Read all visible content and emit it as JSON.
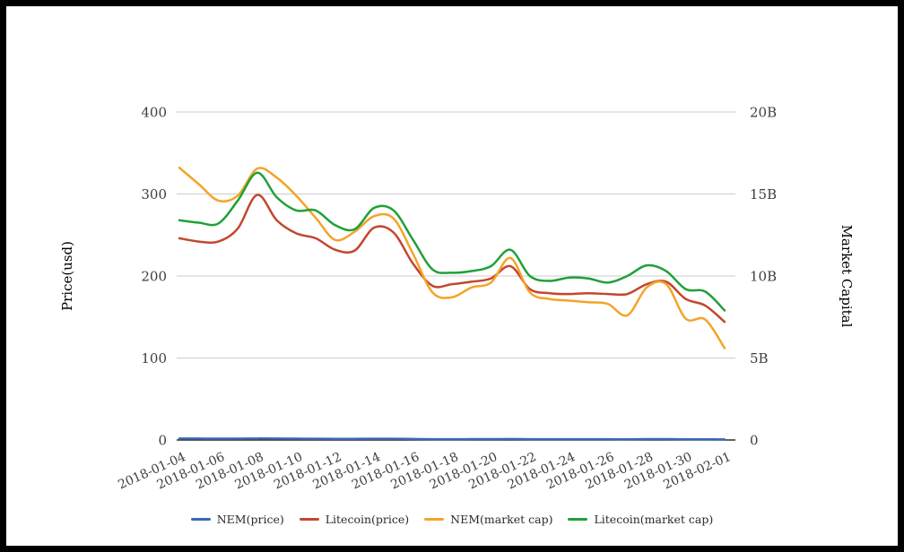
{
  "frame": {
    "background": "#ffffff",
    "border_color": "#000000"
  },
  "chart_data": {
    "type": "line",
    "smooth": true,
    "grid": true,
    "legend_position": "bottom",
    "colors": {
      "grid_line": "#cccccc",
      "baseline": "#2e2e2e",
      "tick_text": "#3e3e3e",
      "axis_title_text": "#333333"
    },
    "x": [
      "2018-01-04",
      "2018-01-05",
      "2018-01-06",
      "2018-01-07",
      "2018-01-08",
      "2018-01-09",
      "2018-01-10",
      "2018-01-11",
      "2018-01-12",
      "2018-01-13",
      "2018-01-14",
      "2018-01-15",
      "2018-01-16",
      "2018-01-17",
      "2018-01-18",
      "2018-01-19",
      "2018-01-20",
      "2018-01-21",
      "2018-01-22",
      "2018-01-23",
      "2018-01-24",
      "2018-01-25",
      "2018-01-26",
      "2018-01-27",
      "2018-01-28",
      "2018-01-29",
      "2018-01-30",
      "2018-01-31",
      "2018-02-01"
    ],
    "x_tick_labels": [
      "2018-01-04",
      "2018-01-06",
      "2018-01-08",
      "2018-01-10",
      "2018-01-12",
      "2018-01-14",
      "2018-01-16",
      "2018-01-18",
      "2018-01-20",
      "2018-01-22",
      "2018-01-24",
      "2018-01-26",
      "2018-01-28",
      "2018-01-30",
      "2018-02-01"
    ],
    "left_axis": {
      "label": "Price(usd)",
      "ticks": [
        "0",
        "100",
        "200",
        "300",
        "400"
      ],
      "range": [
        0,
        400
      ]
    },
    "right_axis": {
      "label": "Market Capital",
      "ticks": [
        "0",
        "5B",
        "10B",
        "15B",
        "20B"
      ],
      "range_billions": [
        0,
        20
      ]
    },
    "series": [
      {
        "name": "NEM(price)",
        "axis": "left",
        "unit": "USD",
        "color": "#3b68b2",
        "values": [
          1.84,
          1.73,
          1.62,
          1.66,
          1.84,
          1.78,
          1.66,
          1.51,
          1.36,
          1.41,
          1.52,
          1.5,
          1.26,
          1.0,
          0.97,
          1.03,
          1.07,
          1.24,
          1.0,
          0.96,
          0.94,
          0.93,
          0.92,
          0.84,
          1.03,
          1.06,
          0.82,
          0.82,
          0.62
        ]
      },
      {
        "name": "Litecoin(price)",
        "axis": "left",
        "unit": "USD",
        "color": "#c2472e",
        "values": [
          246,
          242,
          242,
          258,
          299,
          268,
          252,
          246,
          232,
          231,
          259,
          253,
          215,
          188,
          190,
          193,
          197,
          212,
          184,
          179,
          178,
          179,
          178,
          178,
          190,
          193,
          172,
          164,
          144
        ]
      },
      {
        "name": "NEM(market cap)",
        "axis": "right",
        "unit": "USD (billions)",
        "color": "#f4a428",
        "values": [
          16.6,
          15.6,
          14.6,
          14.9,
          16.55,
          16.0,
          14.9,
          13.55,
          12.2,
          12.7,
          13.65,
          13.5,
          11.35,
          9.0,
          8.7,
          9.3,
          9.6,
          11.1,
          9.0,
          8.6,
          8.5,
          8.4,
          8.3,
          7.6,
          9.3,
          9.5,
          7.4,
          7.35,
          5.6
        ]
      },
      {
        "name": "Litecoin(market cap)",
        "axis": "right",
        "unit": "USD (billions)",
        "color": "#21a038",
        "values": [
          13.4,
          13.25,
          13.2,
          14.6,
          16.3,
          14.8,
          14.0,
          14.0,
          13.1,
          12.85,
          14.15,
          14.0,
          12.2,
          10.4,
          10.2,
          10.3,
          10.6,
          11.6,
          10.0,
          9.7,
          9.9,
          9.85,
          9.6,
          10.0,
          10.65,
          10.3,
          9.2,
          9.05,
          7.9
        ]
      }
    ]
  }
}
